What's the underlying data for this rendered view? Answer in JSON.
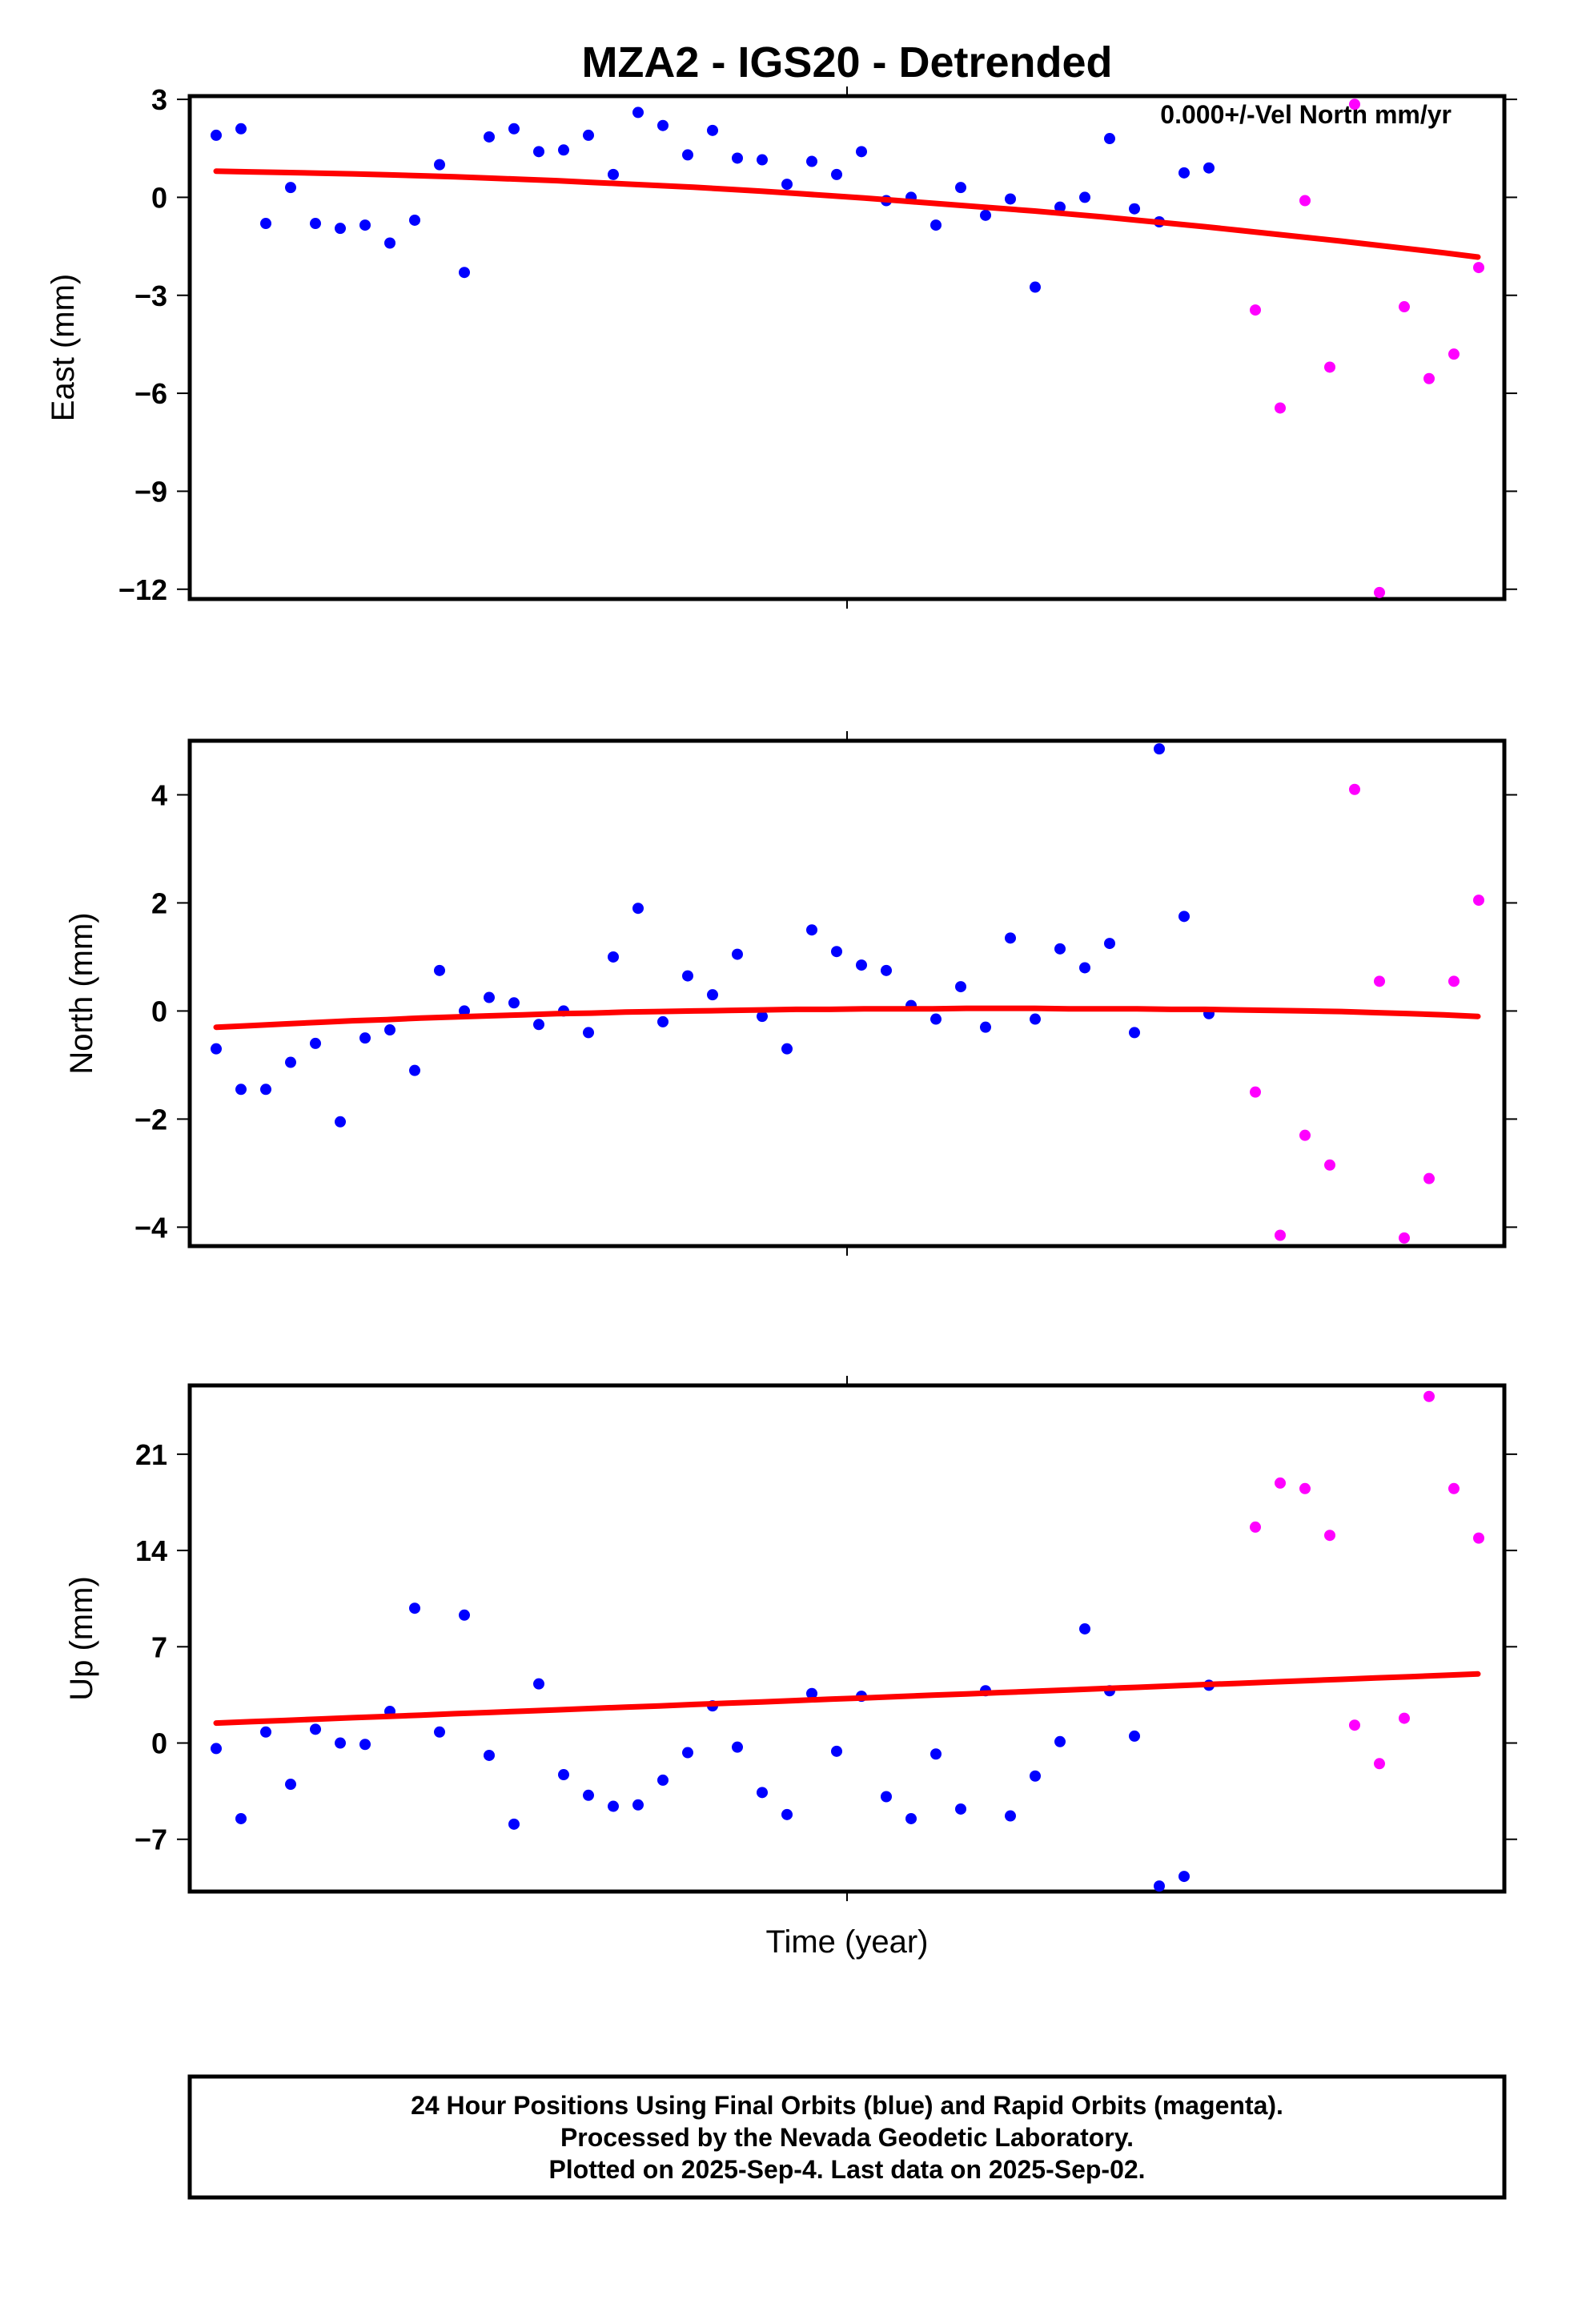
{
  "chart_data": {
    "type": "scatter",
    "title": "MZA2 - IGS20 - Detrended",
    "xlabel": "Time (year)",
    "colors": {
      "final": "#0000ff",
      "rapid": "#ff00ff",
      "fit": "#ff0000",
      "frame": "#000000"
    },
    "panels": [
      {
        "ylabel": "East (mm)",
        "ylim": [
          -12.3,
          3.1
        ],
        "yticks": [
          3,
          0,
          -3,
          -6,
          -9,
          -12
        ],
        "ytick_labels": [
          "3",
          "0",
          "−3",
          "−6",
          "−9",
          "−12"
        ],
        "annotation": "0.000+/-Vel North mm/yr",
        "final_y": [
          1.9,
          2.1,
          -0.8,
          0.3,
          -0.8,
          -0.95,
          -0.85,
          -1.4,
          -0.7,
          1.0,
          -2.3,
          1.85,
          2.1,
          1.4,
          1.45,
          1.9,
          0.7,
          2.6,
          2.2,
          1.3,
          2.05,
          1.2,
          1.15,
          0.4,
          1.1,
          0.7,
          1.4,
          -0.1,
          0.0,
          -0.85,
          0.3,
          -0.55,
          -0.05,
          -2.75,
          -0.3,
          0.0,
          1.8,
          -0.35,
          -0.75,
          0.75,
          0.9
        ],
        "rapid_y": [
          -3.45,
          -6.45,
          -0.1,
          -5.2,
          2.85,
          -12.1,
          -3.35,
          -5.55,
          -4.8,
          -2.15
        ],
        "fit_y": [
          0.8,
          0.78,
          0.76,
          0.74,
          0.72,
          0.69,
          0.66,
          0.63,
          0.59,
          0.55,
          0.51,
          0.46,
          0.41,
          0.36,
          0.31,
          0.25,
          0.19,
          0.12,
          0.05,
          -0.02,
          -0.1,
          -0.18,
          -0.26,
          -0.34,
          -0.42,
          -0.51,
          -0.6,
          -0.7,
          -0.8,
          -0.9,
          -1.01,
          -1.12,
          -1.23,
          -1.34,
          -1.46,
          -1.58,
          -1.7,
          -1.83
        ]
      },
      {
        "ylabel": "North (mm)",
        "ylim": [
          -4.35,
          5.0
        ],
        "yticks": [
          4,
          2,
          0,
          -2,
          -4
        ],
        "ytick_labels": [
          "4",
          "2",
          "0",
          "−2",
          "−4"
        ],
        "annotation": "",
        "final_y": [
          -0.7,
          -1.45,
          -1.45,
          -0.95,
          -0.6,
          -2.05,
          -0.5,
          -0.35,
          -1.1,
          0.75,
          0.0,
          0.25,
          0.15,
          -0.25,
          0.0,
          -0.4,
          1.0,
          1.9,
          -0.2,
          0.65,
          0.3,
          1.05,
          -0.1,
          -0.7,
          1.5,
          1.1,
          0.85,
          0.75,
          0.1,
          -0.15,
          0.45,
          -0.3,
          1.35,
          -0.15,
          1.15,
          0.8,
          1.25,
          -0.4,
          4.85,
          1.75,
          -0.05
        ],
        "rapid_y": [
          -1.5,
          -4.15,
          -2.3,
          -2.85,
          4.1,
          0.55,
          -4.2,
          -3.1,
          0.55,
          2.05
        ],
        "fit_y": [
          -0.3,
          -0.27,
          -0.24,
          -0.21,
          -0.18,
          -0.16,
          -0.13,
          -0.11,
          -0.09,
          -0.07,
          -0.05,
          -0.04,
          -0.02,
          -0.01,
          0.0,
          0.01,
          0.02,
          0.03,
          0.03,
          0.04,
          0.04,
          0.04,
          0.05,
          0.05,
          0.05,
          0.04,
          0.04,
          0.04,
          0.03,
          0.03,
          0.02,
          0.01,
          0.0,
          -0.01,
          -0.03,
          -0.05,
          -0.07,
          -0.1
        ]
      },
      {
        "ylabel": "Up (mm)",
        "ylim": [
          -10.8,
          26.0
        ],
        "yticks": [
          21,
          14,
          7,
          0,
          -7
        ],
        "ytick_labels": [
          "21",
          "14",
          "7",
          "0",
          "−7"
        ],
        "annotation": "",
        "final_y": [
          -0.4,
          -5.5,
          0.8,
          -3.0,
          1.0,
          0.0,
          -0.1,
          2.3,
          9.8,
          0.8,
          9.3,
          -0.9,
          -5.9,
          4.3,
          -2.3,
          -3.8,
          -4.6,
          -4.5,
          -2.7,
          -0.7,
          2.7,
          -0.3,
          -3.6,
          -5.2,
          3.6,
          -0.6,
          3.4,
          -3.9,
          -5.5,
          -0.8,
          -4.8,
          3.8,
          -5.3,
          -2.4,
          0.1,
          8.3,
          3.8,
          0.5,
          -10.4,
          -9.7,
          4.2
        ],
        "rapid_y": [
          15.7,
          18.9,
          18.5,
          15.1,
          1.3,
          -1.5,
          1.8,
          25.2,
          18.5,
          14.9
        ],
        "fit_y": [
          1.45,
          1.55,
          1.64,
          1.74,
          1.84,
          1.93,
          2.03,
          2.13,
          2.22,
          2.32,
          2.41,
          2.51,
          2.61,
          2.7,
          2.8,
          2.9,
          2.99,
          3.09,
          3.19,
          3.28,
          3.38,
          3.48,
          3.57,
          3.67,
          3.76,
          3.86,
          3.96,
          4.05,
          4.15,
          4.25,
          4.34,
          4.44,
          4.54,
          4.63,
          4.73,
          4.82,
          4.92,
          5.02
        ]
      }
    ]
  },
  "caption": {
    "line1": "24 Hour Positions Using Final Orbits (blue) and Rapid Orbits (magenta).",
    "line2": "Processed by the Nevada Geodetic Laboratory.",
    "line3": "Plotted on 2025-Sep-4. Last data on 2025-Sep-02."
  }
}
